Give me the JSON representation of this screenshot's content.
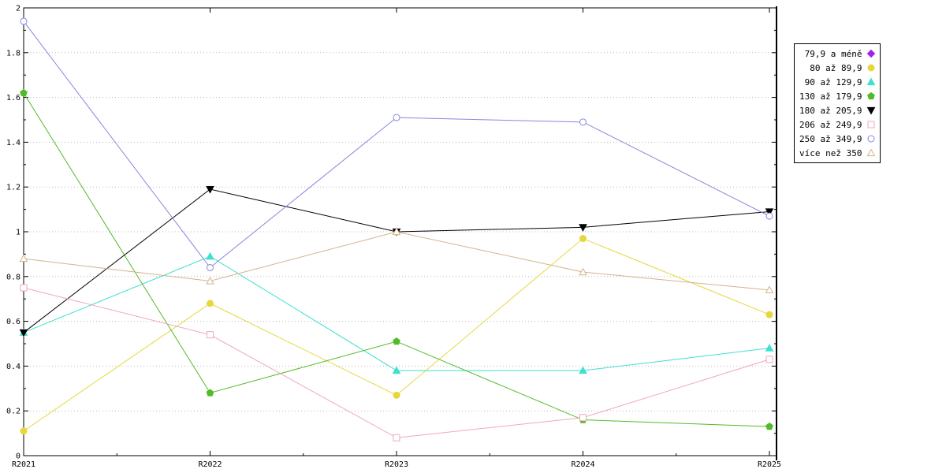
{
  "chart_data": {
    "type": "line",
    "title": "",
    "xlabel": "",
    "ylabel": "",
    "x_categories": [
      "R2021",
      "R2022",
      "R2023",
      "R2024",
      "R2025"
    ],
    "y_tick_labels": [
      "0",
      "0.2",
      "0.4",
      "0.6",
      "0.8",
      "1",
      "1.2",
      "1.4",
      "1.6",
      "1.8",
      "2"
    ],
    "ylim": [
      0,
      2
    ],
    "y_tick_step": 0.2,
    "grid": "horizontal-dotted",
    "legend_position": "outside-right-top",
    "series": [
      {
        "name": "79,9 a méně",
        "color": "#a020f0",
        "marker": "filled-diamond",
        "values": [
          null,
          null,
          null,
          null,
          null
        ]
      },
      {
        "name": "80 až 89,9",
        "color": "#e6d73c",
        "marker": "filled-circle",
        "values": [
          0.11,
          0.68,
          0.27,
          0.97,
          0.63
        ]
      },
      {
        "name": "90 až 129,9",
        "color": "#40e0d0",
        "marker": "filled-triangle-up",
        "values": [
          0.55,
          0.89,
          0.38,
          0.38,
          0.48
        ]
      },
      {
        "name": "130 až 179,9",
        "color": "#52bb2a",
        "marker": "filled-pentagon",
        "values": [
          1.62,
          0.28,
          0.51,
          0.16,
          0.13
        ]
      },
      {
        "name": "180 až 205,9",
        "color": "#000000",
        "marker": "filled-triangle-down",
        "values": [
          0.55,
          1.19,
          1.0,
          1.02,
          1.09
        ]
      },
      {
        "name": "206 až 249,9",
        "color": "#f0a8bc",
        "marker": "open-square",
        "values": [
          0.75,
          0.54,
          0.08,
          0.17,
          0.43
        ]
      },
      {
        "name": "250 až 349,9",
        "color": "#8787e0",
        "marker": "open-circle",
        "values": [
          1.94,
          0.84,
          1.51,
          1.49,
          1.07
        ]
      },
      {
        "name": "více než 350",
        "color": "#d2b48c",
        "marker": "open-triangle-up",
        "values": [
          0.88,
          0.78,
          1.0,
          0.82,
          0.74
        ]
      }
    ]
  }
}
